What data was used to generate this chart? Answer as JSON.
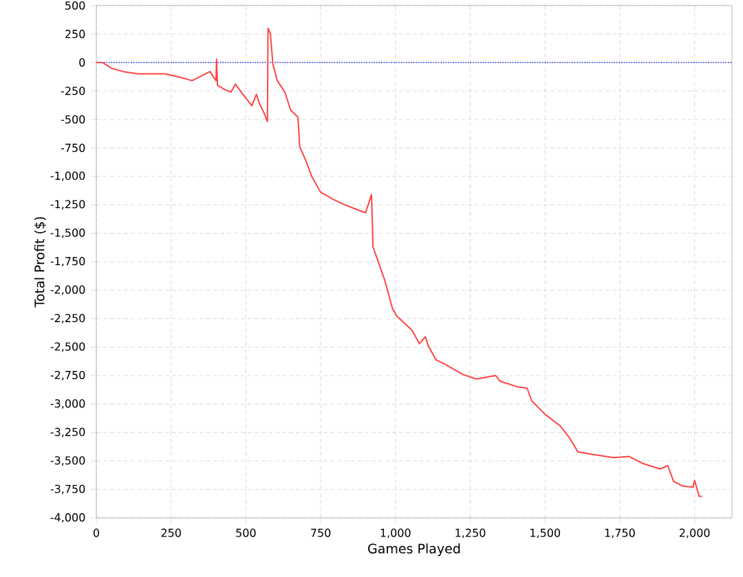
{
  "chart_data": {
    "type": "line",
    "xlabel": "Games Played",
    "ylabel": "Total Profit ($)",
    "xlim": [
      0,
      2125
    ],
    "ylim": [
      -4000,
      500
    ],
    "xticks": [
      0,
      250,
      500,
      750,
      {
        "value": 1000,
        "label": "1,000"
      },
      {
        "value": 1250,
        "label": "1,250"
      },
      {
        "value": 1500,
        "label": "1,500"
      },
      {
        "value": 1750,
        "label": "1,750"
      },
      {
        "value": 2000,
        "label": "2,000"
      }
    ],
    "yticks": [
      500,
      250,
      0,
      -250,
      -500,
      -750,
      {
        "value": -1000,
        "label": "-1,000"
      },
      {
        "value": -1250,
        "label": "-1,250"
      },
      {
        "value": -1500,
        "label": "-1,500"
      },
      {
        "value": -1750,
        "label": "-1,750"
      },
      {
        "value": -2000,
        "label": "-2,000"
      },
      {
        "value": -2250,
        "label": "-2,250"
      },
      {
        "value": -2500,
        "label": "-2,500"
      },
      {
        "value": -2750,
        "label": "-2,750"
      },
      {
        "value": -3000,
        "label": "-3,000"
      },
      {
        "value": -3250,
        "label": "-3,250"
      },
      {
        "value": -3500,
        "label": "-3,500"
      },
      {
        "value": -3750,
        "label": "-3,750"
      },
      {
        "value": -4000,
        "label": "-4,000"
      }
    ],
    "grid": true,
    "marker": "none",
    "line_style": "solid",
    "ref_lines": [
      {
        "axis": "y",
        "value": 0,
        "color": "#4040ff",
        "line_style": "dotted"
      }
    ],
    "series": [
      {
        "color": "#ff4444",
        "x": [
          0,
          20,
          50,
          90,
          140,
          230,
          280,
          320,
          350,
          380,
          400,
          402,
          405,
          430,
          450,
          465,
          490,
          520,
          535,
          545,
          560,
          572,
          574,
          582,
          590,
          605,
          630,
          650,
          674,
          680,
          700,
          720,
          750,
          790,
          830,
          900,
          920,
          925,
          965,
          990,
          1005,
          1055,
          1080,
          1100,
          1110,
          1135,
          1165,
          1225,
          1270,
          1335,
          1350,
          1410,
          1440,
          1455,
          1500,
          1550,
          1580,
          1610,
          1655,
          1730,
          1780,
          1825,
          1885,
          1910,
          1930,
          1960,
          1995,
          2000,
          2015,
          2025
        ],
        "values": [
          0,
          0,
          -50,
          -80,
          -100,
          -100,
          -130,
          -160,
          -120,
          -80,
          -160,
          30,
          -200,
          -240,
          -260,
          -190,
          -280,
          -380,
          -280,
          -360,
          -440,
          -520,
          300,
          250,
          -10,
          -160,
          -260,
          -420,
          -480,
          -740,
          -860,
          -1000,
          -1140,
          -1200,
          -1250,
          -1320,
          -1160,
          -1620,
          -1920,
          -2160,
          -2230,
          -2350,
          -2470,
          -2410,
          -2490,
          -2610,
          -2650,
          -2740,
          -2780,
          -2750,
          -2800,
          -2850,
          -2860,
          -2970,
          -3090,
          -3190,
          -3290,
          -3420,
          -3440,
          -3470,
          -3460,
          -3520,
          -3570,
          -3540,
          -3680,
          -3720,
          -3730,
          -3670,
          -3810,
          -3810
        ]
      }
    ]
  }
}
